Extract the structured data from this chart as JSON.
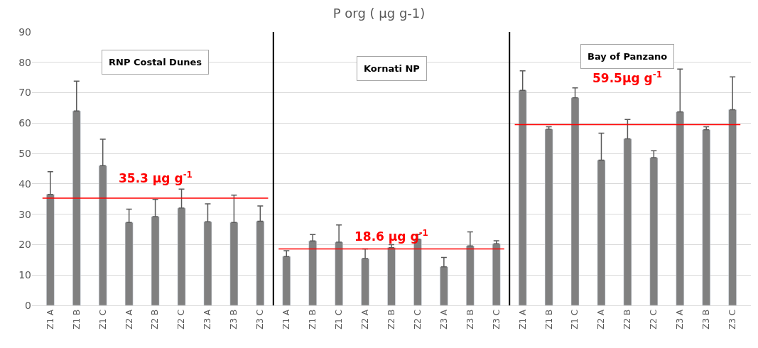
{
  "chart_data": {
    "type": "bar",
    "title": "P org ( µg g-1)",
    "categories": [
      "Z1 A",
      "Z1 B",
      "Z1 C",
      "Z2 A",
      "Z2 B",
      "Z2 C",
      "Z3 A",
      "Z3 B",
      "Z3 C",
      "Z1 A",
      "Z1 B",
      "Z1 C",
      "Z2 A",
      "Z2 B",
      "Z2 C",
      "Z3 A",
      "Z3 B",
      "Z3 C",
      "Z1 A",
      "Z1 B",
      "Z1 C",
      "Z2 A",
      "Z2 B",
      "Z2 C",
      "Z3 A",
      "Z3 B",
      "Z3 C"
    ],
    "values": [
      36.5,
      64,
      46,
      27.3,
      29.2,
      32,
      27.5,
      27.3,
      27.7,
      16.1,
      21.2,
      20.8,
      15.4,
      19,
      21.8,
      12.7,
      19.6,
      20.3,
      70.8,
      58,
      68.3,
      47.8,
      54.8,
      48.6,
      63.7,
      57.8,
      64.4
    ],
    "errors": [
      [
        36.5,
        44
      ],
      [
        64,
        73.8
      ],
      [
        46,
        54.7
      ],
      [
        27.3,
        31.7
      ],
      [
        29.2,
        34.9
      ],
      [
        32,
        38.3
      ],
      [
        27.5,
        33.4
      ],
      [
        27.3,
        36.3
      ],
      [
        27.7,
        32.7
      ],
      [
        16.1,
        18
      ],
      [
        21.2,
        23.3
      ],
      [
        20.8,
        26.5
      ],
      [
        15.4,
        18.6
      ],
      [
        19,
        20
      ],
      [
        21.8,
        23.3
      ],
      [
        12.7,
        15.8
      ],
      [
        19.6,
        24.2
      ],
      [
        20.3,
        21.3
      ],
      [
        70.8,
        77.2
      ],
      [
        58,
        58.8
      ],
      [
        68.3,
        71.6
      ],
      [
        47.8,
        56.7
      ],
      [
        54.8,
        61.2
      ],
      [
        48.6,
        50.9
      ],
      [
        63.7,
        77.8
      ],
      [
        57.8,
        58.8
      ],
      [
        64.4,
        75.2
      ]
    ],
    "color": "#808080",
    "ylim": [
      0,
      90
    ],
    "yticks": [
      0,
      10,
      20,
      30,
      40,
      50,
      60,
      70,
      80,
      90
    ],
    "grid": "y",
    "legend": false,
    "ref_lines": [
      {
        "axis": "y",
        "value": 35.3,
        "label": "35.3 µg g$^{-1}$",
        "color": "#ff0000"
      },
      {
        "axis": "y",
        "value": 18.6,
        "label": "18.6 µg g$^{-1}$",
        "color": "#ff0000"
      },
      {
        "axis": "y",
        "value": 59.5,
        "label": "59.5µg g$^{-1}$",
        "color": "#ff0000"
      }
    ],
    "annotations": [
      "RNP Costal Dunes",
      "Kornati NP",
      "Bay of Panzano"
    ]
  }
}
